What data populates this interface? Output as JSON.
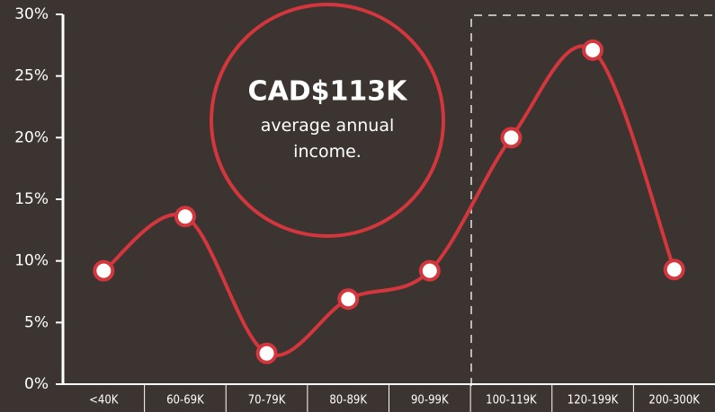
{
  "chart_data": {
    "type": "line",
    "categories": [
      "<40K",
      "60-69K",
      "70-79K",
      "80-89K",
      "90-99K",
      "100-119K",
      "120-199K",
      "200-300K"
    ],
    "values": [
      9.2,
      13.6,
      2.5,
      6.9,
      9.2,
      20,
      27.1,
      9.3
    ],
    "color": "#d3363c",
    "ylim": [
      0,
      30
    ],
    "yticks": [
      {
        "value": 0,
        "label": "0%"
      },
      {
        "value": 5,
        "label": "5%"
      },
      {
        "value": 10,
        "label": "10%"
      },
      {
        "value": 15,
        "label": "15%"
      },
      {
        "value": 20,
        "label": "20%"
      },
      {
        "value": 25,
        "label": "25%"
      },
      {
        "value": 30,
        "label": "30%"
      }
    ],
    "annotation": {
      "title": "CAD$113K",
      "text": "average annual income."
    }
  }
}
